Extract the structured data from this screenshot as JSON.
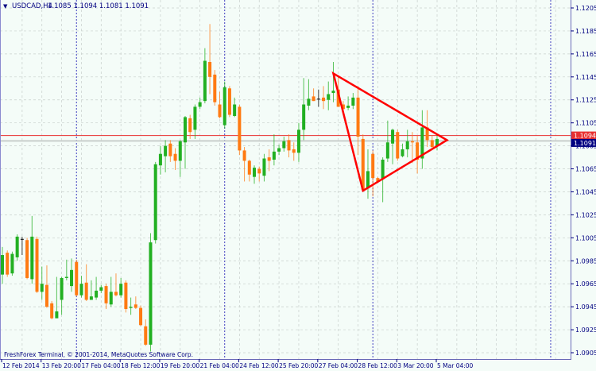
{
  "header": {
    "menu_icon": "triangle-down-icon",
    "symbol": "USDCAD,H4",
    "ohlc": "1.1085 1.1094 1.1081 1.1091"
  },
  "footer": {
    "copyright": "FreshForex Terminal, © 2001-2014, MetaQuotes Software Corp."
  },
  "price_labels": {
    "ask": "1.1094",
    "bid": "1.1091"
  },
  "colors": {
    "background": "#f4fcf8",
    "bull": "#22b022",
    "bear": "#ff7a12",
    "doji": "#000000",
    "grid": "#c8cfcc",
    "separator": "#4040c0",
    "axis_text": "#000080",
    "ask_line": "#e83030",
    "bid_label": "#000080",
    "trendline": "#ff0000"
  },
  "chart_data": {
    "type": "candlestick",
    "title": "USDCAD,H4",
    "ylim": [
      1.0905,
      1.1205
    ],
    "grid": true,
    "y_ticks": [
      "1.1205",
      "1.1185",
      "1.1165",
      "1.1145",
      "1.1125",
      "1.1105",
      "1.1085",
      "1.1065",
      "1.1045",
      "1.1025",
      "1.1005",
      "1.0985",
      "1.0965",
      "1.0945",
      "1.0925",
      "1.0905"
    ],
    "x_ticks": [
      "12 Feb 2014",
      "13 Feb 20:00",
      "17 Feb 04:00",
      "18 Feb 12:00",
      "19 Feb 20:00",
      "21 Feb 04:00",
      "24 Feb 12:00",
      "25 Feb 20:00",
      "27 Feb 04:00",
      "28 Feb 12:00",
      "3 Mar 20:00",
      "5 Mar 04:00"
    ],
    "x_tick_every_bars": 8,
    "period_separators_bars": [
      15,
      45,
      75,
      111
    ],
    "ask_price": 1.1094,
    "bid_price": 1.1091,
    "candles_ohlc": [
      [
        1.0973,
        1.0997,
        1.0965,
        1.099
      ],
      [
        1.0992,
        1.0994,
        1.0971,
        1.0973
      ],
      [
        1.0974,
        1.0993,
        1.0972,
        1.0991
      ],
      [
        1.0988,
        1.1008,
        1.0985,
        1.1006
      ],
      [
        1.1004,
        1.1006,
        1.099,
        1.1004
      ],
      [
        1.1003,
        1.1005,
        1.0969,
        1.097
      ],
      [
        1.0969,
        1.1024,
        1.0965,
        1.1006
      ],
      [
        1.1004,
        1.1006,
        1.0957,
        1.0958
      ],
      [
        1.0958,
        1.098,
        1.0951,
        1.0965
      ],
      [
        1.0964,
        1.0981,
        1.0944,
        1.0945
      ],
      [
        1.0948,
        1.095,
        1.0934,
        1.0935
      ],
      [
        1.0935,
        1.0971,
        1.0935,
        1.0941
      ],
      [
        1.0951,
        1.0971,
        1.0938,
        1.097
      ],
      [
        1.097,
        1.0986,
        1.0968,
        1.0971
      ],
      [
        1.0963,
        1.0987,
        1.0958,
        1.0977
      ],
      [
        1.0984,
        1.0986,
        1.0954,
        1.0955
      ],
      [
        1.0955,
        1.0972,
        1.0953,
        1.0965
      ],
      [
        1.0966,
        1.0982,
        1.095,
        1.0951
      ],
      [
        1.0951,
        1.0968,
        1.0951,
        1.0954
      ],
      [
        1.0953,
        1.0971,
        1.0951,
        1.0959
      ],
      [
        1.0959,
        1.0964,
        1.0957,
        1.0962
      ],
      [
        1.0963,
        1.0965,
        1.0943,
        1.0948
      ],
      [
        1.0947,
        1.0971,
        1.0945,
        1.0958
      ],
      [
        1.0958,
        1.0974,
        1.0954,
        1.0955
      ],
      [
        1.0955,
        1.097,
        1.0953,
        1.0965
      ],
      [
        1.0966,
        1.0968,
        1.094,
        1.0943
      ],
      [
        1.0944,
        1.0953,
        1.0938,
        1.0945
      ],
      [
        1.0947,
        1.0954,
        1.0943,
        1.0944
      ],
      [
        1.0944,
        1.0946,
        1.0928,
        1.0929
      ],
      [
        1.0928,
        1.0934,
        1.0911,
        1.0912
      ],
      [
        1.0912,
        1.1009,
        1.0906,
        1.1001
      ],
      [
        1.1003,
        1.1071,
        1.1,
        1.1069
      ],
      [
        1.1068,
        1.1085,
        1.106,
        1.1078
      ],
      [
        1.1076,
        1.109,
        1.1062,
        1.1085
      ],
      [
        1.1087,
        1.109,
        1.1071,
        1.1076
      ],
      [
        1.1078,
        1.1083,
        1.1064,
        1.1072
      ],
      [
        1.1072,
        1.109,
        1.1058,
        1.1089
      ],
      [
        1.1088,
        1.1111,
        1.1065,
        1.111
      ],
      [
        1.1109,
        1.1112,
        1.1091,
        1.1097
      ],
      [
        1.1099,
        1.1121,
        1.1091,
        1.1119
      ],
      [
        1.1119,
        1.1127,
        1.1117,
        1.1123
      ],
      [
        1.1124,
        1.117,
        1.1122,
        1.1159
      ],
      [
        1.1158,
        1.1191,
        1.113,
        1.1145
      ],
      [
        1.1147,
        1.1151,
        1.112,
        1.1123
      ],
      [
        1.1121,
        1.1132,
        1.1109,
        1.111
      ],
      [
        1.1103,
        1.1141,
        1.11,
        1.1136
      ],
      [
        1.1135,
        1.1137,
        1.111,
        1.1112
      ],
      [
        1.1111,
        1.1127,
        1.111,
        1.1121
      ],
      [
        1.1119,
        1.1121,
        1.1077,
        1.1081
      ],
      [
        1.1081,
        1.1084,
        1.1054,
        1.1072
      ],
      [
        1.1072,
        1.1073,
        1.1054,
        1.106
      ],
      [
        1.1058,
        1.1068,
        1.1052,
        1.1066
      ],
      [
        1.1065,
        1.1067,
        1.1054,
        1.1061
      ],
      [
        1.1059,
        1.1078,
        1.1054,
        1.1074
      ],
      [
        1.1075,
        1.1082,
        1.1063,
        1.1072
      ],
      [
        1.1073,
        1.1095,
        1.1068,
        1.108
      ],
      [
        1.108,
        1.1086,
        1.1077,
        1.1083
      ],
      [
        1.1083,
        1.1093,
        1.108,
        1.1089
      ],
      [
        1.109,
        1.1095,
        1.1075,
        1.1081
      ],
      [
        1.1082,
        1.1088,
        1.1072,
        1.1079
      ],
      [
        1.1079,
        1.1105,
        1.1071,
        1.1099
      ],
      [
        1.1099,
        1.1144,
        1.109,
        1.1121
      ],
      [
        1.112,
        1.1143,
        1.1116,
        1.1126
      ],
      [
        1.1128,
        1.1135,
        1.1124,
        1.1124
      ],
      [
        1.1126,
        1.1134,
        1.1119,
        1.1126
      ],
      [
        1.1127,
        1.1137,
        1.1117,
        1.1124
      ],
      [
        1.1125,
        1.1141,
        1.1116,
        1.113
      ],
      [
        1.1131,
        1.1158,
        1.1123,
        1.1133
      ],
      [
        1.1134,
        1.1146,
        1.1119,
        1.1119
      ],
      [
        1.1121,
        1.1124,
        1.1114,
        1.1117
      ],
      [
        1.1118,
        1.1128,
        1.1116,
        1.112
      ],
      [
        1.112,
        1.1131,
        1.1117,
        1.1127
      ],
      [
        1.1127,
        1.1137,
        1.1077,
        1.1093
      ],
      [
        1.1091,
        1.1095,
        1.1046,
        1.1047
      ],
      [
        1.1048,
        1.1082,
        1.1039,
        1.1063
      ],
      [
        1.1078,
        1.1081,
        1.1041,
        1.1057
      ],
      [
        1.1057,
        1.1058,
        1.1053,
        1.1054
      ],
      [
        1.1056,
        1.1075,
        1.1036,
        1.1073
      ],
      [
        1.1074,
        1.1107,
        1.1071,
        1.1088
      ],
      [
        1.1087,
        1.11,
        1.1069,
        1.1099
      ],
      [
        1.1097,
        1.1099,
        1.1072,
        1.1074
      ],
      [
        1.1076,
        1.1087,
        1.1075,
        1.1082
      ],
      [
        1.1082,
        1.1099,
        1.1075,
        1.1089
      ],
      [
        1.1089,
        1.1097,
        1.107,
        1.1088
      ],
      [
        1.1088,
        1.1094,
        1.1061,
        1.1073
      ],
      [
        1.1074,
        1.1116,
        1.1065,
        1.1101
      ],
      [
        1.1101,
        1.1116,
        1.1084,
        1.109
      ],
      [
        1.109,
        1.1094,
        1.1083,
        1.1084
      ],
      [
        1.1085,
        1.1094,
        1.1081,
        1.1091
      ]
    ],
    "triangle_vertices": [
      {
        "bar": 67,
        "price": 1.1148
      },
      {
        "bar": 90,
        "price": 1.109
      },
      {
        "bar": 73,
        "price": 1.1046
      }
    ]
  }
}
